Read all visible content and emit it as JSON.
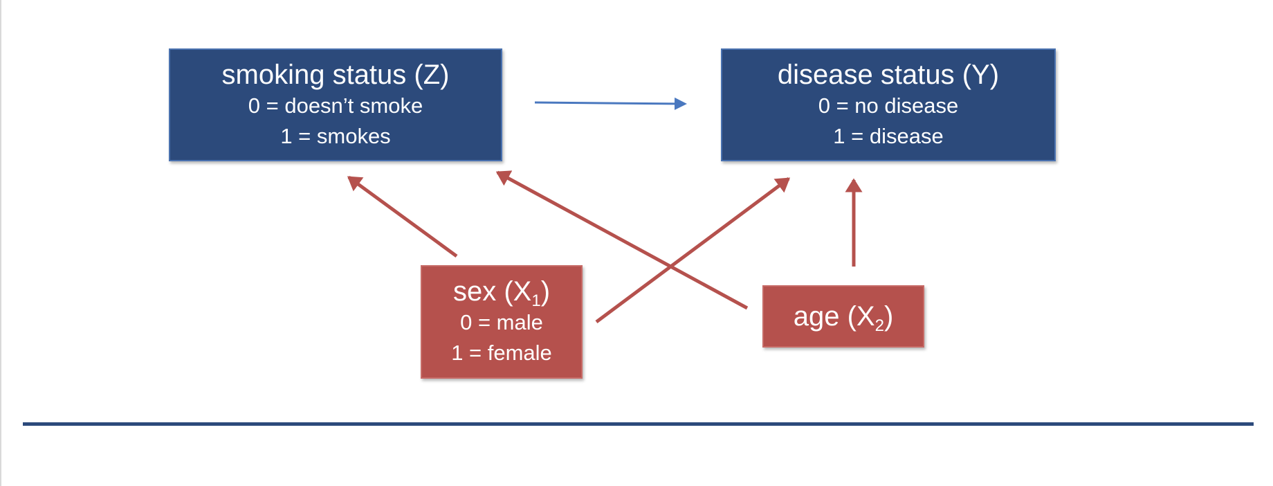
{
  "colors": {
    "blue_box": "#2c4a7b",
    "red_box": "#b5514d",
    "blue_arrow": "#4a78bf",
    "red_arrow": "#b5514d",
    "divider": "#2c4a7b"
  },
  "nodes": {
    "smoking": {
      "title": "smoking status (Z)",
      "line1": "0 = doesn’t smoke",
      "line2": "1 = smokes"
    },
    "disease": {
      "title": "disease status (Y)",
      "line1": "0 = no disease",
      "line2": "1 = disease"
    },
    "sex": {
      "title_text": "sex (X",
      "title_sub": "1",
      "title_close": ")",
      "line1": "0 = male",
      "line2": "1 = female"
    },
    "age": {
      "title_text": "age (X",
      "title_sub": "2",
      "title_close": ")"
    }
  },
  "edges": [
    {
      "from": "smoking status (Z)",
      "to": "disease status (Y)",
      "color": "blue"
    },
    {
      "from": "sex (X1)",
      "to": "smoking status (Z)",
      "color": "red"
    },
    {
      "from": "sex (X1)",
      "to": "disease status (Y)",
      "color": "red"
    },
    {
      "from": "age (X2)",
      "to": "smoking status (Z)",
      "color": "red"
    },
    {
      "from": "age (X2)",
      "to": "disease status (Y)",
      "color": "red"
    }
  ]
}
